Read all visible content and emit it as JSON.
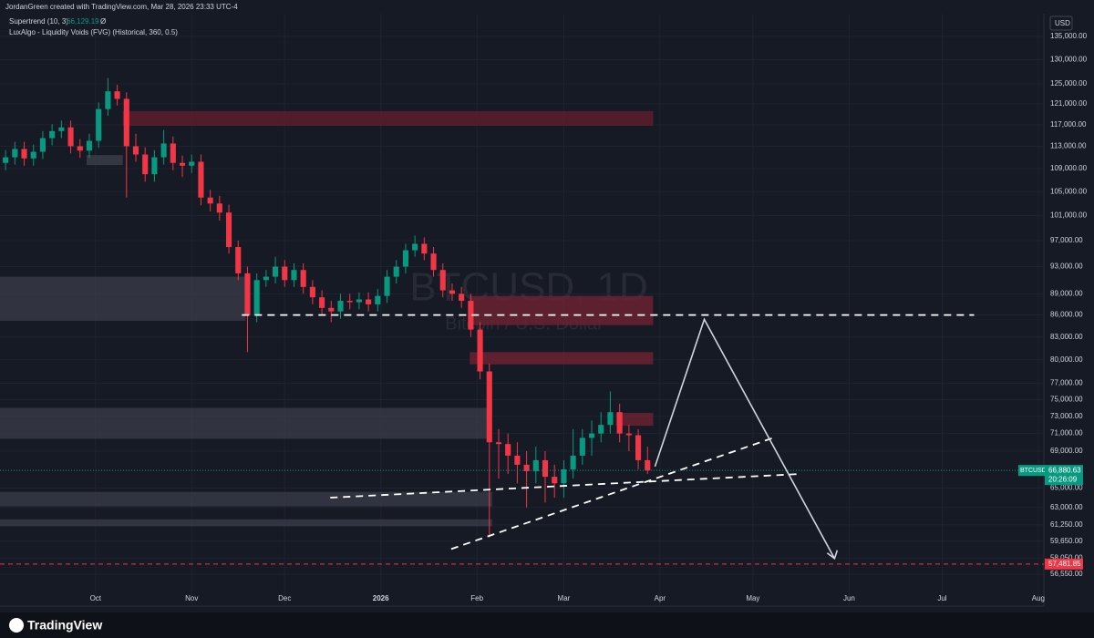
{
  "header": {
    "credit": "JordanGreen created with TradingView.com, Mar 28, 2026 23:33 UTC-4",
    "indicator1": "Supertrend (10, 3)",
    "indicator1_value": "66,129.19",
    "indicator1_mark": "Ø",
    "indicator2": "LuxAlgo - Liquidity Voids (FVG) (Historical, 360, 0.5)",
    "currency": "USD"
  },
  "footer": {
    "brand": "TradingView"
  },
  "chart_data": {
    "type": "candlestick",
    "title": "BTCUSD, 1D",
    "subtitle": "Bitcoin / U.S. Dollar",
    "log_scale": true,
    "grid": true,
    "up_color": "#089981",
    "down_color": "#f23645",
    "ylim": [
      54100,
      139000
    ],
    "yticks": [
      {
        "value": 135000,
        "label": "135,000.00"
      },
      {
        "value": 130000,
        "label": "130,000.00"
      },
      {
        "value": 125000,
        "label": "125,000.00"
      },
      {
        "value": 121000,
        "label": "121,000.00"
      },
      {
        "value": 117000,
        "label": "117,000.00"
      },
      {
        "value": 113000,
        "label": "113,000.00"
      },
      {
        "value": 109000,
        "label": "109,000.00"
      },
      {
        "value": 105000,
        "label": "105,000.00"
      },
      {
        "value": 101000,
        "label": "101,000.00"
      },
      {
        "value": 97000,
        "label": "97,000.00"
      },
      {
        "value": 93000,
        "label": "93,000.00"
      },
      {
        "value": 89000,
        "label": "89,000.00"
      },
      {
        "value": 86000,
        "label": "86,000.00"
      },
      {
        "value": 83000,
        "label": "83,000.00"
      },
      {
        "value": 80000,
        "label": "80,000.00"
      },
      {
        "value": 77000,
        "label": "77,000.00"
      },
      {
        "value": 75000,
        "label": "75,000.00"
      },
      {
        "value": 73000,
        "label": "73,000.00"
      },
      {
        "value": 71000,
        "label": "71,000.00"
      },
      {
        "value": 69000,
        "label": "69,000.00"
      },
      {
        "value": 65000,
        "label": "65,000.00"
      },
      {
        "value": 63000,
        "label": "63,000.00"
      },
      {
        "value": 61250,
        "label": "61,250.00"
      },
      {
        "value": 59650,
        "label": "59,650.00"
      },
      {
        "value": 58050,
        "label": "58,050.00"
      },
      {
        "value": 56550,
        "label": "56,550.00"
      }
    ],
    "xlim": [
      -0.6,
      111.6
    ],
    "xticks": [
      {
        "value": 9.67,
        "label": "Oct"
      },
      {
        "value": 20,
        "label": "Nov"
      },
      {
        "value": 30,
        "label": "Dec"
      },
      {
        "value": 40.33,
        "label": "2026"
      },
      {
        "value": 50.67,
        "label": "Feb"
      },
      {
        "value": 60,
        "label": "Mar"
      },
      {
        "value": 70.33,
        "label": "Apr"
      },
      {
        "value": 80.33,
        "label": "May"
      },
      {
        "value": 90.67,
        "label": "Jun"
      },
      {
        "value": 100.67,
        "label": "Jul"
      },
      {
        "value": 111,
        "label": "Aug"
      }
    ],
    "ohlc": [
      [
        110000,
        112300,
        108700,
        111000
      ],
      [
        111000,
        113800,
        109700,
        112500
      ],
      [
        112500,
        113800,
        109500,
        110800
      ],
      [
        110800,
        113300,
        109500,
        112000
      ],
      [
        112000,
        115800,
        110700,
        114500
      ],
      [
        114500,
        117100,
        113200,
        115800
      ],
      [
        115800,
        117800,
        114500,
        116500
      ],
      [
        116500,
        117800,
        111700,
        113000
      ],
      [
        113000,
        114300,
        110900,
        112200
      ],
      [
        112200,
        115300,
        110900,
        114000
      ],
      [
        114000,
        121300,
        112700,
        120000
      ],
      [
        120000,
        126200,
        118700,
        123500
      ],
      [
        123500,
        124800,
        120700,
        122000
      ],
      [
        122000,
        123300,
        104000,
        113000
      ],
      [
        113000,
        115300,
        110200,
        111500
      ],
      [
        111500,
        112800,
        106700,
        108000
      ],
      [
        108000,
        112300,
        106700,
        111000
      ],
      [
        111000,
        116000,
        109700,
        113500
      ],
      [
        113500,
        114800,
        108700,
        110000
      ],
      [
        110000,
        111300,
        107500,
        109500
      ],
      [
        109500,
        111500,
        108200,
        110200
      ],
      [
        110200,
        111500,
        102700,
        104000
      ],
      [
        104000,
        105300,
        101700,
        103000
      ],
      [
        103000,
        104300,
        100200,
        101500
      ],
      [
        101500,
        102800,
        95000,
        96000
      ],
      [
        96000,
        97000,
        91000,
        92000
      ],
      [
        92000,
        93000,
        81000,
        86000
      ],
      [
        86000,
        92000,
        85000,
        91000
      ],
      [
        91000,
        92500,
        90000,
        91500
      ],
      [
        91500,
        94500,
        90500,
        93000
      ],
      [
        93000,
        94000,
        90000,
        91000
      ],
      [
        91000,
        93500,
        90000,
        92500
      ],
      [
        92500,
        93500,
        89000,
        90000
      ],
      [
        90000,
        91000,
        87500,
        88500
      ],
      [
        88500,
        89500,
        86000,
        87000
      ],
      [
        87000,
        88000,
        85000,
        86500
      ],
      [
        86500,
        89000,
        85500,
        88000
      ],
      [
        88000,
        89000,
        86800,
        87800
      ],
      [
        87800,
        89200,
        86800,
        88200
      ],
      [
        88200,
        89200,
        86500,
        87500
      ],
      [
        87500,
        89700,
        86500,
        88700
      ],
      [
        88700,
        92500,
        87700,
        91500
      ],
      [
        91500,
        94000,
        90500,
        93000
      ],
      [
        93000,
        96500,
        92000,
        95500
      ],
      [
        95500,
        97800,
        94500,
        96500
      ],
      [
        96500,
        97500,
        94000,
        95000
      ],
      [
        95000,
        96000,
        91500,
        92500
      ],
      [
        92500,
        93500,
        88500,
        89500
      ],
      [
        89500,
        90500,
        88000,
        89000
      ],
      [
        89000,
        90000,
        87000,
        88000
      ],
      [
        88000,
        89000,
        83000,
        84000
      ],
      [
        84000,
        85000,
        77500,
        78500
      ],
      [
        78500,
        79500,
        60000,
        70000
      ],
      [
        70000,
        71500,
        66000,
        69800
      ],
      [
        69800,
        71000,
        66500,
        68500
      ],
      [
        68500,
        70000,
        65500,
        67500
      ],
      [
        67500,
        69000,
        63000,
        66800
      ],
      [
        66800,
        69500,
        65500,
        68000
      ],
      [
        68000,
        69000,
        63500,
        66200
      ],
      [
        66200,
        67500,
        64000,
        65500
      ],
      [
        65500,
        68000,
        64000,
        67000
      ],
      [
        67000,
        71500,
        66000,
        68500
      ],
      [
        68500,
        71500,
        67500,
        70500
      ],
      [
        70500,
        72500,
        68500,
        71000
      ],
      [
        71000,
        73500,
        70000,
        72000
      ],
      [
        72000,
        76000,
        71000,
        73500
      ],
      [
        73500,
        74500,
        70000,
        71000
      ],
      [
        71000,
        72000,
        69000,
        70800
      ],
      [
        70800,
        71500,
        67000,
        68000
      ],
      [
        68000,
        69500,
        66500,
        66880.63
      ]
    ],
    "zones": [
      {
        "x": [
          12.6,
          69.6
        ],
        "y": [
          116800,
          119600
        ],
        "color": "#5c1f2b"
      },
      {
        "x": [
          8.7,
          12.6
        ],
        "y": [
          109600,
          111400
        ],
        "color": "#3a3d47"
      },
      {
        "x": [
          -0.6,
          25.8
        ],
        "y": [
          85200,
          91500
        ],
        "color": "#363a45"
      },
      {
        "x": [
          49.9,
          69.6
        ],
        "y": [
          84600,
          88700
        ],
        "color": "#6a2230"
      },
      {
        "x": [
          49.9,
          69.6
        ],
        "y": [
          79400,
          81000
        ],
        "color": "#6a2230"
      },
      {
        "x": [
          -0.6,
          51.8
        ],
        "y": [
          70400,
          74000
        ],
        "color": "#363a45"
      },
      {
        "x": [
          65.6,
          69.6
        ],
        "y": [
          71900,
          73400
        ],
        "color": "#6a2230"
      },
      {
        "x": [
          -0.6,
          52.3
        ],
        "y": [
          63100,
          64600
        ],
        "color": "#363a45"
      },
      {
        "x": [
          -0.6,
          52.3
        ],
        "y": [
          61100,
          61800
        ],
        "color": "#363a45"
      }
    ],
    "dashed_lines": [
      [
        [
          25.4,
          86000
        ],
        [
          104.1,
          86000
        ]
      ],
      [
        [
          34.9,
          64000
        ],
        [
          85.4,
          66500
        ]
      ],
      [
        [
          47.9,
          58900
        ],
        [
          82.5,
          70500
        ]
      ]
    ],
    "arrow_path": [
      [
        69.8,
        67300
      ],
      [
        75.1,
        85400
      ],
      [
        89.1,
        58000
      ]
    ],
    "symbol": "BTCUSD",
    "last_price": {
      "value": 66880.63,
      "label": "66,880.63"
    },
    "countdown": "20:26:09",
    "alert_level": {
      "value": 57481.85,
      "label": "57,481.85"
    }
  }
}
